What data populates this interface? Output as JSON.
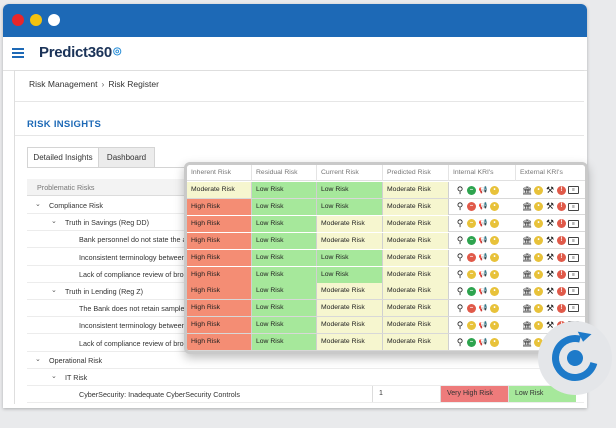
{
  "window_controls": {
    "close": "#e8262a",
    "minimize": "#f3c20f",
    "maximize": "#ffffff"
  },
  "app": {
    "logo_text": "Predict360",
    "accent": "#1d69b6"
  },
  "breadcrumb": {
    "parent": "Risk Management",
    "separator": "›",
    "current": "Risk Register"
  },
  "section": {
    "title": "RISK INSIGHTS"
  },
  "tabs": [
    {
      "label": "Detailed Insights",
      "active": true
    },
    {
      "label": "Dashboard",
      "active": false
    }
  ],
  "tree": {
    "header": "Problematic Risks",
    "rows": [
      {
        "label": "Compliance Risk",
        "level": 0,
        "expanded": true
      },
      {
        "label": "Truth in Savings (Reg DD)",
        "level": 1,
        "expanded": true
      },
      {
        "label": "Bank personnel do not state the a",
        "level": 2
      },
      {
        "label": "Inconsistent terminology between",
        "level": 2
      },
      {
        "label": "Lack of compliance review of broc",
        "level": 2
      },
      {
        "label": "Truth in Lending (Reg Z)",
        "level": 1,
        "expanded": true
      },
      {
        "label": "The Bank does not retain sample c",
        "level": 2
      },
      {
        "label": "Inconsistent terminology between",
        "level": 2
      },
      {
        "label": "Lack of compliance review of broc",
        "level": 2
      },
      {
        "label": "Operational Risk",
        "level": 0,
        "expanded": true
      },
      {
        "label": "IT Risk",
        "level": 1,
        "expanded": true
      },
      {
        "label": "CyberSecurity: Inadequate CyberSecurity Controls",
        "level": 2,
        "count": "1",
        "predicted": "Very High Risk",
        "internal": "Low Risk"
      }
    ]
  },
  "overlay": {
    "headers": [
      "Inherent Risk",
      "Residual Risk",
      "Current Risk",
      "Predicted Risk",
      "Internal KRI's",
      "External KRI's"
    ],
    "rows": [
      [
        "Moderate Risk",
        "Low Risk",
        "Low Risk",
        "Moderate Risk"
      ],
      [
        "High Risk",
        "Low Risk",
        "Low Risk",
        "Moderate Risk"
      ],
      [
        "High Risk",
        "Low Risk",
        "Moderate Risk",
        "Moderate Risk"
      ],
      [
        "High Risk",
        "Low Risk",
        "Moderate Risk",
        "Moderate Risk"
      ],
      [
        "High Risk",
        "Low Risk",
        "Low Risk",
        "Moderate Risk"
      ],
      [
        "High Risk",
        "Low Risk",
        "Low Risk",
        "Moderate Risk"
      ],
      [
        "High Risk",
        "Low Risk",
        "Moderate Risk",
        "Moderate Risk"
      ],
      [
        "High Risk",
        "Low Risk",
        "Moderate Risk",
        "Moderate Risk"
      ],
      [
        "High Risk",
        "Low Risk",
        "Moderate Risk",
        "Moderate Risk"
      ],
      [
        "High Risk",
        "Low Risk",
        "Moderate Risk",
        "Moderate Risk"
      ]
    ],
    "colors": {
      "Moderate Risk": "#f6f6cf",
      "Low Risk": "#a6e89b",
      "High Risk": "#f48d74",
      "Very High Risk": "#ee7b7b"
    }
  },
  "icons": [
    "menu-icon",
    "search-icon",
    "bank-icon",
    "gavel-icon",
    "megaphone-icon",
    "status-dot-icon",
    "badge-icon",
    "refresh-sync-icon"
  ]
}
